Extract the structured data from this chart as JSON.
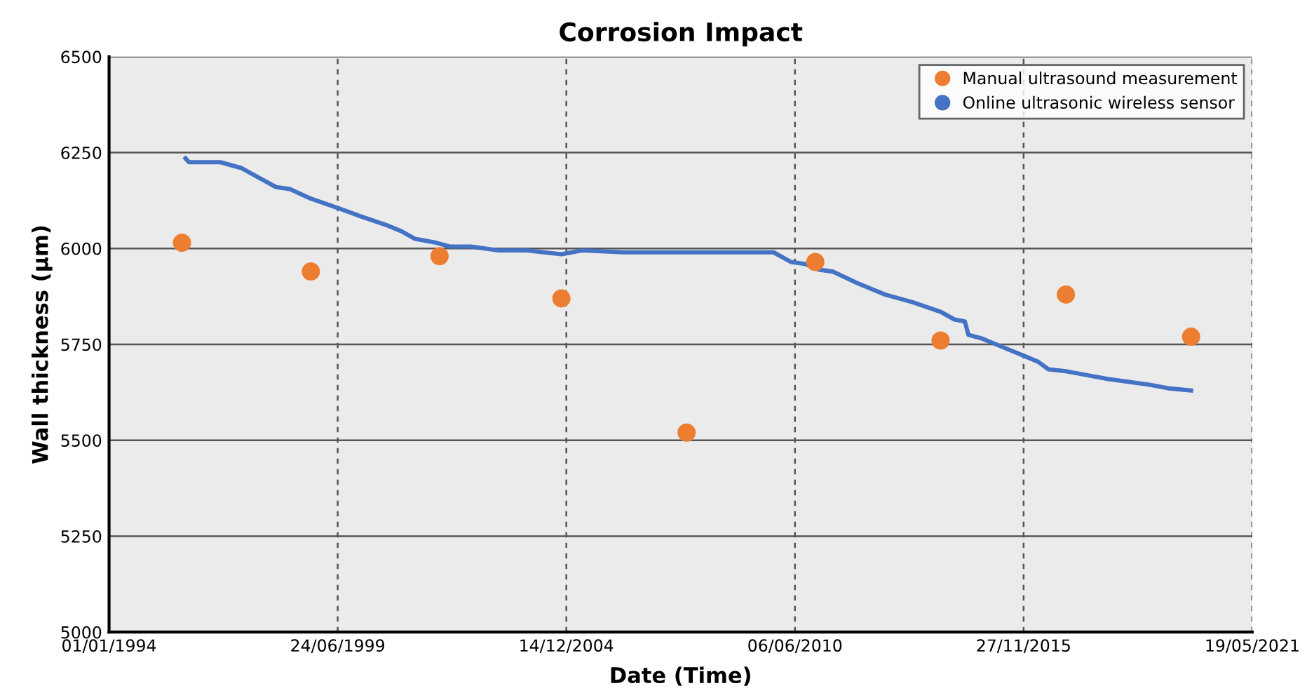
{
  "chart_data": {
    "type": "line",
    "title": "Corrosion Impact",
    "xlabel": "Date (Time)",
    "ylabel": "Wall thickness (µm)",
    "xlim": [
      "1994-01-01",
      "2021-05-19"
    ],
    "xticks": [
      {
        "value": "1994-01-01",
        "label": "01/01/1994"
      },
      {
        "value": "1999-06-24",
        "label": "24/06/1999"
      },
      {
        "value": "2004-12-14",
        "label": "14/12/2004"
      },
      {
        "value": "2010-06-06",
        "label": "06/06/2010"
      },
      {
        "value": "2015-11-27",
        "label": "27/11/2015"
      },
      {
        "value": "2021-05-19",
        "label": "19/05/2021"
      }
    ],
    "ylim": [
      5000,
      6500
    ],
    "yticks": [
      5000,
      5250,
      5500,
      5750,
      6000,
      6250,
      6500
    ],
    "grid": true,
    "legend": "top right",
    "series": [
      {
        "name": "Manual ultrasound measurement",
        "type": "scatter",
        "color": "#ed7d31",
        "marker": "circle",
        "x": [
          "1995-10",
          "1998-11",
          "2001-12",
          "2004-11",
          "2007-11",
          "2010-12",
          "2013-12",
          "2016-12",
          "2019-12"
        ],
        "values": [
          6015,
          5940,
          5980,
          5870,
          5520,
          5965,
          5760,
          5880,
          5770
        ]
      },
      {
        "name": "Online ultrasonic wireless sensor",
        "color": "#4472c4",
        "x": [
          "1995-11",
          "1995-12",
          "1996-09",
          "1997-03",
          "1997-09",
          "1998-01",
          "1998-05",
          "1998-11",
          "1999-07",
          "2000-01",
          "2000-09",
          "2001-01",
          "2001-05",
          "2001-11",
          "2002-03",
          "2002-09",
          "2003-05",
          "2004-01",
          "2004-11",
          "2005-05",
          "2006-05",
          "2008-01",
          "2009-12",
          "2010-05",
          "2010-09",
          "2011-01",
          "2011-05",
          "2011-12",
          "2012-08",
          "2013-04",
          "2013-12",
          "2014-04",
          "2014-07",
          "2014-08",
          "2014-12",
          "2015-04",
          "2015-08",
          "2015-12",
          "2016-04",
          "2016-07",
          "2016-12",
          "2017-12",
          "2018-12",
          "2019-06",
          "2019-12"
        ],
        "values": [
          6235,
          6225,
          6225,
          6210,
          6180,
          6160,
          6155,
          6130,
          6105,
          6085,
          6060,
          6045,
          6025,
          6015,
          6005,
          6005,
          5995,
          5995,
          5985,
          5995,
          5990,
          5990,
          5990,
          5965,
          5960,
          5945,
          5940,
          5910,
          5880,
          5860,
          5835,
          5815,
          5810,
          5775,
          5765,
          5750,
          5735,
          5720,
          5705,
          5685,
          5680,
          5660,
          5645,
          5635,
          5630
        ]
      }
    ]
  }
}
